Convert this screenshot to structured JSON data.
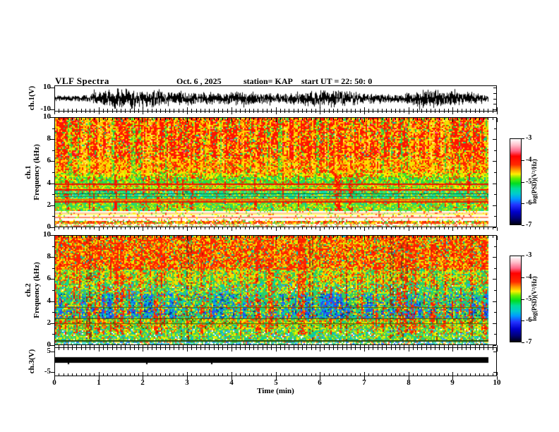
{
  "title": {
    "main": "VLF Spectra",
    "date": "Oct. 6 , 2025",
    "station": "station= KAP",
    "start_ut": "start UT =  22: 50: 0"
  },
  "xaxis": {
    "label": "Time (min)",
    "ticks": [
      "0",
      "1",
      "2",
      "3",
      "4",
      "5",
      "6",
      "7",
      "8",
      "9",
      "10"
    ],
    "range_min": [
      0,
      10
    ],
    "data_end_min": 9.81
  },
  "panels": {
    "wave1": {
      "ylabel": "ch.1(V)",
      "yticks": [
        "10",
        "-10"
      ],
      "ytick_vals": [
        10,
        -10
      ],
      "ylim": [
        -12,
        12
      ]
    },
    "spec1": {
      "ylabel_channel": "ch.1",
      "ylabel_axis": "Frequency (kHz)",
      "yticks": [
        "10",
        "8",
        "6",
        "4",
        "2",
        "0"
      ],
      "ytick_vals": [
        10,
        8,
        6,
        4,
        2,
        0
      ],
      "flim": [
        0,
        10
      ]
    },
    "spec2": {
      "ylabel_channel": "ch.2",
      "ylabel_axis": "Frequency (kHz)",
      "yticks": [
        "10",
        "8",
        "6",
        "4",
        "2",
        "0"
      ],
      "ytick_vals": [
        10,
        8,
        6,
        4,
        2,
        0
      ],
      "flim": [
        0,
        10
      ]
    },
    "wave3": {
      "ylabel": "ch.3(V)",
      "yticks": [
        "5",
        "-5"
      ],
      "ytick_vals": [
        5,
        -5
      ],
      "ylim": [
        -7,
        7
      ]
    }
  },
  "colorbar": {
    "label": "log(PSD)(V²/Hz)",
    "ticks": [
      "-3",
      "-4",
      "-5",
      "-6",
      "-7"
    ],
    "gradient": [
      [
        0,
        "#ffffff"
      ],
      [
        7,
        "#ffc0cb"
      ],
      [
        14,
        "#ff6688"
      ],
      [
        20,
        "#ff0000"
      ],
      [
        30,
        "#ff2a00"
      ],
      [
        36,
        "#ff9900"
      ],
      [
        41,
        "#ffee00"
      ],
      [
        46,
        "#66ee00"
      ],
      [
        52,
        "#00dd22"
      ],
      [
        58,
        "#00dd99"
      ],
      [
        64,
        "#00cccc"
      ],
      [
        70,
        "#0099ff"
      ],
      [
        77,
        "#2233ff"
      ],
      [
        85,
        "#0000cc"
      ],
      [
        93,
        "#000077"
      ],
      [
        100,
        "#000011"
      ]
    ]
  },
  "chart_data": [
    {
      "id": "ch1_waveform",
      "type": "line",
      "ylabel": "ch.1(V)",
      "ylim": [
        -12,
        12
      ],
      "yticks": [
        10,
        -10
      ],
      "xlim_min": [
        0,
        10
      ],
      "data_end_min": 9.81,
      "seed": 7,
      "description": "dense broadband noise, envelope ~±4 to ±10 V, fills panel",
      "amp_min": 2.5,
      "amp_max": 10.5,
      "spike_prob": 0.02
    },
    {
      "id": "ch1_spectrogram",
      "type": "heatmap",
      "channel": "ch.1",
      "flim_kHz": [
        0,
        10
      ],
      "tlim_min": [
        0,
        10
      ],
      "data_end_min": 9.81,
      "seed": 101,
      "psd_scale_log": [
        -7,
        -3
      ],
      "bands": [
        {
          "f": [
            10.0,
            6.3
          ],
          "colors": [
            [
              "#ff1500",
              58
            ],
            [
              "#ff7700",
              10
            ],
            [
              "#ffdd00",
              16
            ],
            [
              "#ccee00",
              6
            ],
            [
              "#22cc44",
              6
            ],
            [
              "#00ccbb",
              2
            ],
            [
              "#ff4499",
              2
            ]
          ]
        },
        {
          "f": [
            6.3,
            5.05
          ],
          "colors": [
            [
              "#ff2200",
              40
            ],
            [
              "#ff8800",
              15
            ],
            [
              "#ffdd00",
              28
            ],
            [
              "#ccee00",
              10
            ],
            [
              "#33cc33",
              7
            ]
          ]
        },
        {
          "f": [
            5.05,
            4.55
          ],
          "colors": [
            [
              "#ffee00",
              35
            ],
            [
              "#ff3300",
              20
            ],
            [
              "#bbee00",
              20
            ],
            [
              "#33dd33",
              20
            ],
            [
              "#ff8800",
              5
            ]
          ]
        },
        {
          "f": [
            4.55,
            4.0
          ],
          "colors": [
            [
              "#33dd33",
              40
            ],
            [
              "#aaee00",
              20
            ],
            [
              "#ffee00",
              14
            ],
            [
              "#ff3300",
              14
            ],
            [
              "#00ccaa",
              12
            ]
          ]
        },
        {
          "f": [
            4.0,
            3.5
          ],
          "colors": [
            [
              "#bbee00",
              25
            ],
            [
              "#ffee00",
              22
            ],
            [
              "#44dd44",
              30
            ],
            [
              "#ff4400",
              13
            ],
            [
              "#ff9900",
              10
            ]
          ]
        },
        {
          "f": [
            3.5,
            2.6
          ],
          "colors": [
            [
              "#33dd55",
              40
            ],
            [
              "#00ddb0",
              22
            ],
            [
              "#55ddcc",
              8
            ],
            [
              "#bbee00",
              12
            ],
            [
              "#ffee00",
              8
            ],
            [
              "#ff3300",
              7
            ],
            [
              "#007755",
              3
            ]
          ]
        },
        {
          "f": [
            2.6,
            1.5
          ],
          "colors": [
            [
              "#44dd44",
              42
            ],
            [
              "#aaee00",
              20
            ],
            [
              "#ffee00",
              14
            ],
            [
              "#00ccaa",
              10
            ],
            [
              "#ff3300",
              9
            ],
            [
              "#ff8800",
              5
            ]
          ]
        },
        {
          "f": [
            1.5,
            0.62
          ],
          "stripes": [
            "#ffffff",
            "#ffffbb",
            "#ffffff",
            "#ffcc99",
            "#ffff88",
            "#ffffff",
            "#ff8866",
            "#ffffee"
          ],
          "speckle_prob": 0.15,
          "speckle": [
            [
              "#ff5533",
              40
            ],
            [
              "#ffee00",
              30
            ],
            [
              "#88dd66",
              30
            ]
          ]
        },
        {
          "f": [
            0.62,
            0.3
          ],
          "colors": [
            [
              "#ff3300",
              28
            ],
            [
              "#ff8800",
              18
            ],
            [
              "#ffee00",
              20
            ],
            [
              "#55cc44",
              18
            ],
            [
              "#ffffff",
              8
            ],
            [
              "#cc2200",
              8
            ]
          ]
        },
        {
          "f": [
            0.3,
            0.0
          ],
          "colors": [
            [
              "#ffffff",
              30
            ],
            [
              "#ffdd99",
              20
            ],
            [
              "#ff7755",
              18
            ],
            [
              "#ffee66",
              16
            ],
            [
              "#99dd77",
              16
            ]
          ]
        }
      ],
      "hlines": [
        {
          "f": 3.94,
          "h": 2,
          "c": "#ee1100"
        },
        {
          "f": 3.44,
          "h": 2,
          "c": "#ee1100"
        },
        {
          "f": 3.02,
          "h": 1,
          "c": "#007744"
        },
        {
          "f": 2.78,
          "h": 1,
          "c": "#118866"
        },
        {
          "f": 2.52,
          "h": 2,
          "c": "#ff6600"
        },
        {
          "f": 2.36,
          "h": 2,
          "c": "#ee1100"
        }
      ],
      "streaks": [
        {
          "name": "yellow-vertical",
          "prob": 0.28,
          "cont": 0.5,
          "f": [
            10,
            4.9
          ],
          "mix": 0.6,
          "colors": [
            [
              "#ffdd00",
              55
            ],
            [
              "#ff9900",
              30
            ],
            [
              "#ffee66",
              15
            ]
          ]
        },
        {
          "name": "green-vertical",
          "prob": 0.1,
          "cont": 0.4,
          "f": [
            10,
            4.0
          ],
          "mix": 0.65,
          "colors": [
            [
              "#33cc44",
              60
            ],
            [
              "#bbee00",
              40
            ]
          ]
        },
        {
          "name": "red-fall",
          "prob": 0.09,
          "cont": 0.45,
          "f": [
            4.9,
            1.5
          ],
          "mix": 0.6,
          "colors": [
            [
              "#ff1100",
              80
            ],
            [
              "#ff6600",
              20
            ]
          ]
        }
      ]
    },
    {
      "id": "ch2_spectrogram",
      "type": "heatmap",
      "channel": "ch.2",
      "flim_kHz": [
        0,
        10
      ],
      "tlim_min": [
        0,
        10
      ],
      "data_end_min": 9.81,
      "seed": 202,
      "psd_scale_log": [
        -7,
        -3
      ],
      "bands": [
        {
          "f": [
            10,
            7.0
          ],
          "colors": [
            [
              "#ff2200",
              44
            ],
            [
              "#ff8800",
              14
            ],
            [
              "#ffdd00",
              20
            ],
            [
              "#ccee00",
              10
            ],
            [
              "#33cc44",
              8
            ],
            [
              "#00bbcc",
              4
            ]
          ]
        },
        {
          "f": [
            7.0,
            5.6
          ],
          "colors": [
            [
              "#ffdd00",
              22
            ],
            [
              "#ccee00",
              26
            ],
            [
              "#44cc44",
              22
            ],
            [
              "#ff3300",
              16
            ],
            [
              "#ff9900",
              8
            ],
            [
              "#00ccaa",
              6
            ]
          ]
        },
        {
          "f": [
            5.6,
            4.7
          ],
          "colors": [
            [
              "#44cc55",
              32
            ],
            [
              "#ccee00",
              22
            ],
            [
              "#ffee00",
              12
            ],
            [
              "#ff3300",
              12
            ],
            [
              "#00ccbb",
              14
            ],
            [
              "#ffffff",
              2
            ],
            [
              "#3399ff",
              6
            ]
          ]
        },
        {
          "f": [
            4.7,
            3.5
          ],
          "colors": [
            [
              "#33cc55",
              36
            ],
            [
              "#00ccbb",
              16
            ],
            [
              "#2266ff",
              12
            ],
            [
              "#ccee00",
              12
            ],
            [
              "#ffee00",
              8
            ],
            [
              "#ff3300",
              10
            ],
            [
              "#115588",
              6
            ]
          ]
        },
        {
          "f": [
            3.5,
            2.45
          ],
          "colors": [
            [
              "#33cc55",
              32
            ],
            [
              "#00ccbb",
              18
            ],
            [
              "#2255ff",
              16
            ],
            [
              "#ffee00",
              10
            ],
            [
              "#ff3300",
              12
            ],
            [
              "#ccee00",
              8
            ],
            [
              "#004488",
              4
            ]
          ]
        },
        {
          "f": [
            2.45,
            1.55
          ],
          "colors": [
            [
              "#44cc44",
              30
            ],
            [
              "#ccee00",
              20
            ],
            [
              "#ffee00",
              14
            ],
            [
              "#ff8800",
              10
            ],
            [
              "#ff3300",
              12
            ],
            [
              "#00ccaa",
              10
            ],
            [
              "#336600",
              4
            ]
          ]
        },
        {
          "f": [
            1.55,
            0.4
          ],
          "colors": [
            [
              "#44cc55",
              30
            ],
            [
              "#00ccaa",
              18
            ],
            [
              "#aaee00",
              22
            ],
            [
              "#ffee00",
              14
            ],
            [
              "#ff4400",
              6
            ],
            [
              "#44aaff",
              6
            ],
            [
              "#ffffff",
              4
            ]
          ]
        },
        {
          "f": [
            0.4,
            0.0
          ],
          "colors": [
            [
              "#55ddcc",
              26
            ],
            [
              "#44cc55",
              22
            ],
            [
              "#ffee66",
              18
            ],
            [
              "#3388ff",
              12
            ],
            [
              "#ff6644",
              8
            ],
            [
              "#ffffff",
              14
            ]
          ]
        }
      ],
      "hlines": [
        {
          "f": 3.46,
          "h": 1,
          "c": "#556600"
        },
        {
          "f": 2.42,
          "h": 1,
          "c": "#445500"
        },
        {
          "f": 1.92,
          "h": 1,
          "c": "#556600"
        },
        {
          "f": 0.36,
          "h": 2,
          "c": "#224400"
        }
      ],
      "streaks": [
        {
          "name": "red-vertical",
          "prob": 0.2,
          "cont": 0.45,
          "f": [
            10,
            1.0
          ],
          "mix": 0.55,
          "colors": [
            [
              "#ff2200",
              72
            ],
            [
              "#ff8800",
              18
            ],
            [
              "#cc1100",
              10
            ]
          ]
        },
        {
          "name": "blue-block",
          "prob": 0.13,
          "cont": 0.62,
          "f": [
            4.7,
            2.45
          ],
          "mix": 0.7,
          "colors": [
            [
              "#2255ee",
              55
            ],
            [
              "#00bbdd",
              30
            ],
            [
              "#003399",
              15
            ]
          ]
        },
        {
          "name": "green-vertical",
          "prob": 0.18,
          "cont": 0.5,
          "f": [
            7.0,
            4.0
          ],
          "mix": 0.5,
          "colors": [
            [
              "#33cc55",
              60
            ],
            [
              "#00ddaa",
              25
            ],
            [
              "#ccee00",
              15
            ]
          ]
        },
        {
          "name": "dark-line",
          "prob": 0.05,
          "cont": 0.3,
          "f": [
            10,
            0.4
          ],
          "mix": 0.35,
          "colors": [
            [
              "#883311",
              70
            ],
            [
              "#aa4400",
              30
            ]
          ]
        }
      ]
    },
    {
      "id": "ch3_waveform",
      "type": "line",
      "ylabel": "ch.3(V)",
      "ylim": [
        -7,
        7
      ],
      "yticks": [
        5,
        -5
      ],
      "xlim_min": [
        0,
        10
      ],
      "data_end_min": 9.81,
      "description": "saturated flat band between 0 and +2.45 V for whole record",
      "bar_range_V": [
        0,
        2.45
      ],
      "notch_fracs": [
        0.03,
        0.21,
        0.36
      ]
    }
  ]
}
